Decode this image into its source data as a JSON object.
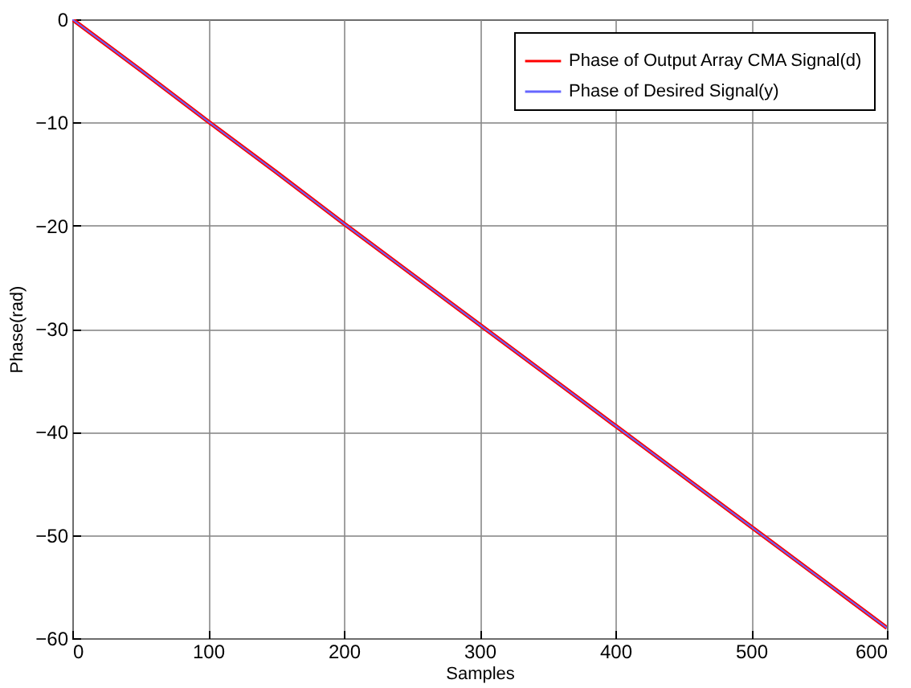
{
  "chart_data": {
    "type": "line",
    "xlabel": "Samples",
    "ylabel": "Phase(rad)",
    "x": [
      0,
      50,
      100,
      150,
      200,
      250,
      300,
      350,
      400,
      450,
      500,
      550,
      600
    ],
    "series": [
      {
        "name": "Phase of Output Array CMA Signal(d)",
        "color": "#ff0000",
        "values": [
          0,
          -4.9,
          -9.9,
          -14.8,
          -19.8,
          -24.7,
          -29.6,
          -34.5,
          -39.4,
          -44.3,
          -49.2,
          -54.1,
          -59
        ]
      },
      {
        "name": "Phase of Desired Signal(y)",
        "color": "#6666ff",
        "values": [
          0,
          -4.9,
          -9.9,
          -14.8,
          -19.8,
          -24.7,
          -29.6,
          -34.5,
          -39.4,
          -44.3,
          -49.2,
          -54.1,
          -59
        ]
      }
    ],
    "xlim": [
      0,
      600
    ],
    "xticks": [
      0,
      100,
      200,
      300,
      400,
      500,
      600
    ],
    "ylim": [
      -60,
      0
    ],
    "yticks": [
      -60,
      -50,
      -40,
      -30,
      -20,
      -10,
      0
    ],
    "grid": true,
    "legend": "top right",
    "line_style": "solid",
    "marker": "none"
  }
}
